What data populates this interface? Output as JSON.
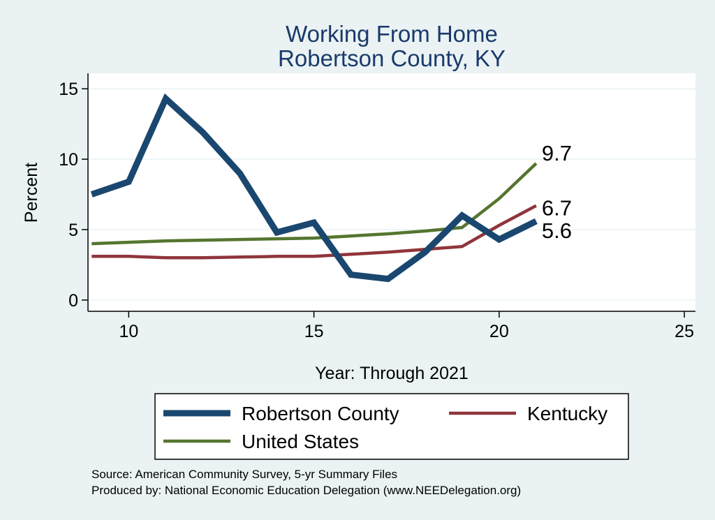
{
  "chart_data": {
    "type": "line",
    "title": "Working From Home",
    "subtitle": "Robertson County, KY",
    "xlabel": "Year: Through 2021",
    "ylabel": "Percent",
    "xlim": [
      8.9,
      25.3
    ],
    "ylim": [
      -0.8,
      16.1
    ],
    "xticks": [
      10,
      15,
      20,
      25
    ],
    "yticks": [
      0,
      5,
      10,
      15
    ],
    "grid": true,
    "legend_position": "bottom",
    "series": [
      {
        "name": "Robertson County",
        "color": "#1a476f",
        "width": "thick",
        "x": [
          9,
          10,
          11,
          12,
          13,
          14,
          15,
          16,
          17,
          18,
          19,
          20,
          21
        ],
        "y": [
          7.5,
          8.4,
          14.3,
          11.9,
          9.0,
          4.8,
          5.5,
          1.8,
          1.5,
          3.4,
          6.0,
          4.3,
          5.6
        ],
        "end_label": "5.6"
      },
      {
        "name": "Kentucky",
        "color": "#90353b",
        "width": "medium",
        "x": [
          9,
          10,
          11,
          12,
          13,
          14,
          15,
          16,
          17,
          18,
          19,
          20,
          21
        ],
        "y": [
          3.1,
          3.1,
          3.0,
          3.0,
          3.05,
          3.1,
          3.1,
          3.25,
          3.4,
          3.6,
          3.8,
          5.3,
          6.7
        ],
        "end_label": "6.7"
      },
      {
        "name": "United States",
        "color": "#55752f",
        "width": "medium",
        "x": [
          9,
          10,
          11,
          12,
          13,
          14,
          15,
          16,
          17,
          18,
          19,
          20,
          21
        ],
        "y": [
          4.0,
          4.1,
          4.2,
          4.25,
          4.3,
          4.35,
          4.4,
          4.55,
          4.7,
          4.9,
          5.15,
          7.2,
          9.7
        ],
        "end_label": "9.7"
      }
    ],
    "legend_entries": [
      "Robertson County",
      "Kentucky",
      "United States"
    ],
    "notes": [
      "Source: American Community Survey, 5-yr Summary Files",
      "Produced by: National Economic Education Delegation (www.NEEDelegation.org)"
    ]
  },
  "colors": {
    "background": "#eaf2f3",
    "plot_background": "#ffffff",
    "title": "#1a3a6b",
    "grid": "#eaf2f3"
  }
}
